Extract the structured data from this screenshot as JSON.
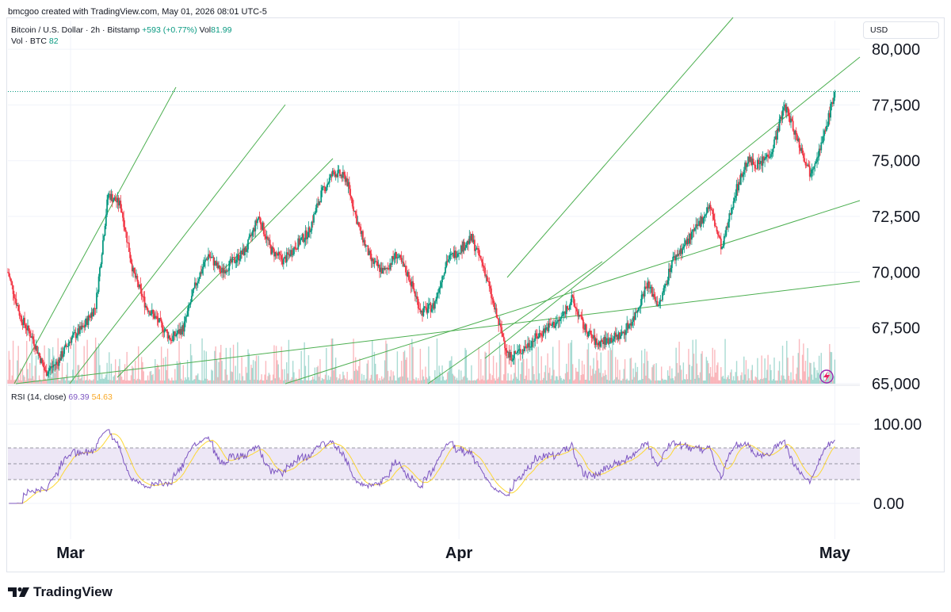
{
  "caption": "bmcgoo created with TradingView.com, May 01, 2026 08:01 UTC-5",
  "legend": {
    "symbol": "Bitcoin / U.S. Dollar · 2h · Bitstamp",
    "change": "+593 (+0.77%)",
    "vol_label": "Vol",
    "vol_value": "81.99",
    "vol_line_label": "Vol · BTC",
    "vol_line_value": "82"
  },
  "rsi_legend": {
    "label": "RSI (14, close)",
    "rsi_value": "69.39",
    "ma_value": "54.63"
  },
  "currency": "USD",
  "brand": "TradingView",
  "colors": {
    "up": "#089981",
    "down": "#f23645",
    "trend": "#4caf50",
    "rsi": "#7e57c2",
    "rsi_ma": "#fdd835",
    "rsi_band": "#ede7f6"
  },
  "chart_data": [
    {
      "type": "candlestick",
      "y_ticks": [
        {
          "value": 65000,
          "label": "65,000"
        },
        {
          "value": 67500,
          "label": "67,500"
        },
        {
          "value": 70000,
          "label": "70,000"
        },
        {
          "value": 72500,
          "label": "72,500"
        },
        {
          "value": 75000,
          "label": "75,000"
        },
        {
          "value": 77500,
          "label": "77,500"
        },
        {
          "value": 80000,
          "label": "80,000"
        }
      ],
      "ylim": [
        65000,
        80500
      ],
      "x_ticks": [
        {
          "value": "2026-03-01",
          "label": "Mar"
        },
        {
          "value": "2026-04-01",
          "label": "Apr"
        },
        {
          "value": "2026-05-01",
          "label": "May"
        }
      ],
      "xlim": [
        "2026-02-24",
        "2026-05-03"
      ],
      "last_price": 78100,
      "price_path": [
        [
          "2026-02-24",
          70000
        ],
        [
          "2026-02-25",
          68000
        ],
        [
          "2026-02-26",
          67000
        ],
        [
          "2026-02-27",
          65500
        ],
        [
          "2026-02-28",
          66000
        ],
        [
          "2026-03-01",
          67000
        ],
        [
          "2026-03-02",
          67500
        ],
        [
          "2026-03-03",
          68500
        ],
        [
          "2026-03-04",
          73500
        ],
        [
          "2026-03-05",
          73000
        ],
        [
          "2026-03-06",
          70000
        ],
        [
          "2026-03-07",
          68500
        ],
        [
          "2026-03-08",
          67800
        ],
        [
          "2026-03-09",
          67000
        ],
        [
          "2026-03-10",
          67500
        ],
        [
          "2026-03-11",
          69500
        ],
        [
          "2026-03-12",
          70800
        ],
        [
          "2026-03-13",
          70000
        ],
        [
          "2026-03-14",
          70500
        ],
        [
          "2026-03-15",
          71000
        ],
        [
          "2026-03-16",
          72500
        ],
        [
          "2026-03-17",
          71000
        ],
        [
          "2026-03-18",
          70500
        ],
        [
          "2026-03-19",
          71200
        ],
        [
          "2026-03-20",
          71800
        ],
        [
          "2026-03-21",
          73500
        ],
        [
          "2026-03-22",
          74500
        ],
        [
          "2026-03-23",
          74200
        ],
        [
          "2026-03-24",
          72000
        ],
        [
          "2026-03-25",
          70500
        ],
        [
          "2026-03-26",
          70000
        ],
        [
          "2026-03-27",
          70800
        ],
        [
          "2026-03-28",
          69800
        ],
        [
          "2026-03-29",
          68200
        ],
        [
          "2026-03-30",
          68500
        ],
        [
          "2026-03-31",
          70500
        ],
        [
          "2026-04-01",
          71000
        ],
        [
          "2026-04-02",
          71500
        ],
        [
          "2026-04-03",
          70200
        ],
        [
          "2026-04-04",
          68000
        ],
        [
          "2026-04-05",
          66200
        ],
        [
          "2026-04-06",
          66500
        ],
        [
          "2026-04-07",
          67000
        ],
        [
          "2026-04-08",
          67500
        ],
        [
          "2026-04-09",
          67800
        ],
        [
          "2026-04-10",
          68800
        ],
        [
          "2026-04-11",
          67500
        ],
        [
          "2026-04-12",
          66800
        ],
        [
          "2026-04-13",
          67000
        ],
        [
          "2026-04-14",
          67200
        ],
        [
          "2026-04-15",
          68000
        ],
        [
          "2026-04-16",
          69500
        ],
        [
          "2026-04-17",
          68500
        ],
        [
          "2026-04-18",
          70500
        ],
        [
          "2026-04-19",
          71200
        ],
        [
          "2026-04-20",
          72000
        ],
        [
          "2026-04-21",
          73000
        ],
        [
          "2026-04-22",
          71000
        ],
        [
          "2026-04-23",
          73500
        ],
        [
          "2026-04-24",
          75000
        ],
        [
          "2026-04-25",
          74800
        ],
        [
          "2026-04-26",
          75500
        ],
        [
          "2026-04-27",
          77500
        ],
        [
          "2026-04-28",
          76000
        ],
        [
          "2026-04-29",
          74500
        ],
        [
          "2026-04-30",
          75800
        ],
        [
          "2026-05-01",
          78100
        ]
      ]
    },
    {
      "type": "line",
      "name": "RSI (14, close)",
      "y_ticks": [
        {
          "value": 100,
          "label": "100.00"
        },
        {
          "value": 0,
          "label": "0.00"
        }
      ],
      "ylim": [
        -30,
        130
      ],
      "bands": [
        30,
        50,
        70
      ]
    }
  ]
}
